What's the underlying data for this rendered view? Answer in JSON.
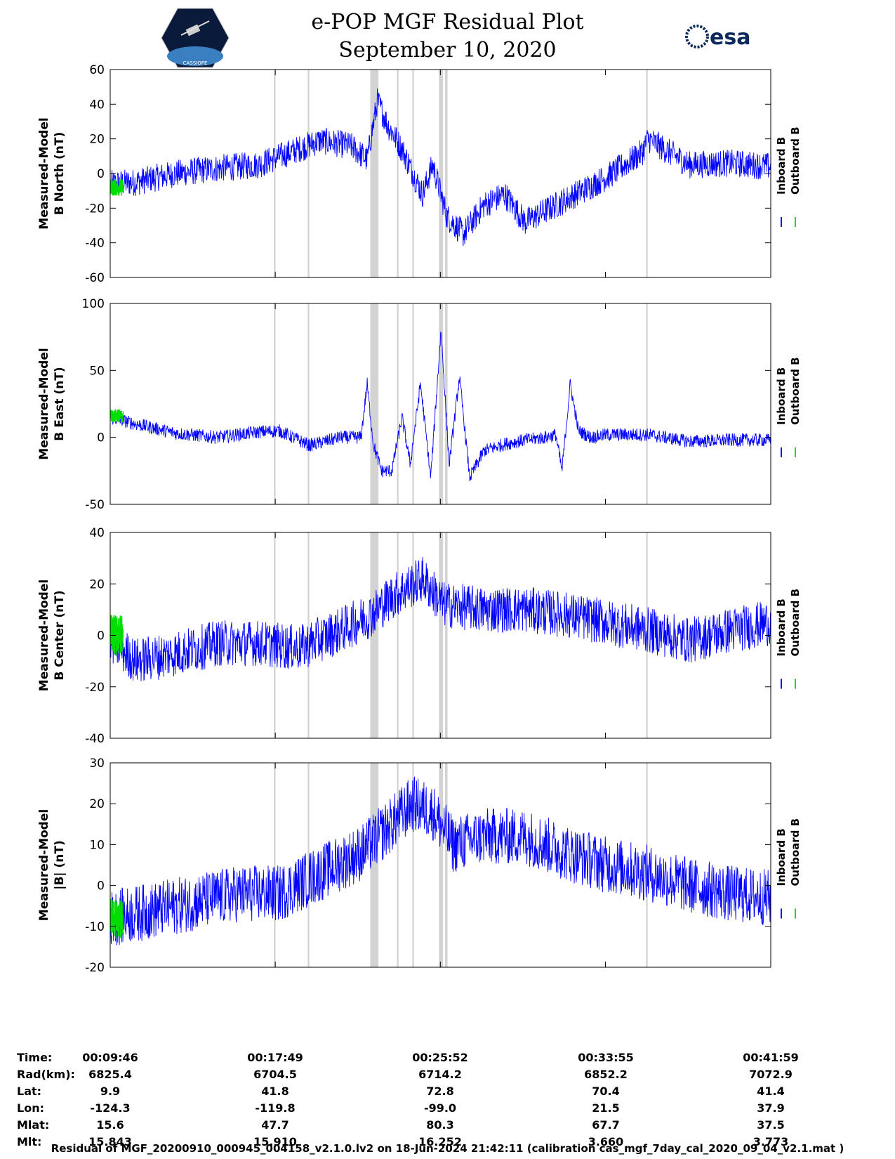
{
  "header": {
    "title_line1": "e-POP MGF Residual Plot",
    "title_line2": "September 10, 2020",
    "left_logo_text": "CASSIOPE",
    "right_logo_text": "esa"
  },
  "colors": {
    "inboard": "#0000ff",
    "outboard": "#00dd00",
    "gap": "#d3d3d3"
  },
  "chart_data": [
    {
      "type": "line",
      "ylabel": [
        "Measured-Model",
        "B North (nT)"
      ],
      "ylim": [
        -60,
        60
      ],
      "yticks": [
        -60,
        -40,
        -20,
        0,
        20,
        40,
        60
      ],
      "legend": [
        "Inboard B",
        "Outboard B"
      ],
      "x_range_minutes": [
        9.77,
        41.98
      ],
      "series": [
        {
          "name": "Inboard B",
          "x": [
            9.8,
            11,
            13,
            15,
            17,
            18.5,
            20,
            21.5,
            22.3,
            22.8,
            23.3,
            24,
            25,
            25.5,
            26.2,
            27,
            28,
            29,
            30,
            32,
            34,
            35.7,
            36,
            38,
            40,
            42
          ],
          "y": [
            -6,
            -5,
            0,
            3,
            5,
            12,
            19,
            16,
            8,
            42,
            28,
            14,
            -12,
            5,
            -25,
            -35,
            -18,
            -12,
            -28,
            -15,
            -2,
            12,
            20,
            5,
            6,
            4
          ],
          "noise": 8
        },
        {
          "name": "Outboard B",
          "x": [
            9.8,
            10.4
          ],
          "y": [
            -8,
            -8
          ],
          "noise": 5
        }
      ]
    },
    {
      "type": "line",
      "ylabel": [
        "Measured-Model",
        "B East (nT)"
      ],
      "ylim": [
        -50,
        100
      ],
      "yticks": [
        -50,
        0,
        50,
        100
      ],
      "legend": [
        "Inboard B",
        "Outboard B"
      ],
      "x_range_minutes": [
        9.77,
        41.98
      ],
      "series": [
        {
          "name": "Inboard B",
          "x": [
            9.8,
            11,
            13,
            15,
            17,
            18,
            19.5,
            21,
            22,
            22.3,
            22.6,
            23,
            23.5,
            24,
            24.4,
            24.9,
            25.4,
            25.9,
            26.3,
            26.8,
            27.3,
            28,
            29,
            30,
            31,
            31.5,
            31.8,
            32.2,
            32.6,
            33.2,
            34,
            36,
            38,
            40,
            42
          ],
          "y": [
            15,
            10,
            3,
            0,
            4,
            5,
            -6,
            0,
            0,
            40,
            -5,
            -25,
            -25,
            15,
            -20,
            40,
            -30,
            80,
            -20,
            45,
            -30,
            -10,
            -5,
            -2,
            0,
            2,
            -25,
            40,
            5,
            0,
            2,
            2,
            -3,
            -2,
            -2
          ],
          "noise": 5
        },
        {
          "name": "Outboard B",
          "x": [
            9.8,
            10.4
          ],
          "y": [
            16,
            16
          ],
          "noise": 5
        }
      ]
    },
    {
      "type": "line",
      "ylabel": [
        "Measured-Model",
        "B Center (nT)"
      ],
      "ylim": [
        -40,
        40
      ],
      "yticks": [
        -40,
        -20,
        0,
        20,
        40
      ],
      "legend": [
        "Inboard B",
        "Outboard B"
      ],
      "x_range_minutes": [
        9.77,
        41.98
      ],
      "series": [
        {
          "name": "Inboard B",
          "x": [
            9.8,
            11,
            13,
            15,
            17,
            19,
            21,
            22.5,
            23.5,
            25,
            26,
            28,
            30,
            32,
            34,
            36,
            38,
            40,
            42
          ],
          "y": [
            -2,
            -10,
            -7,
            -3,
            -3,
            -5,
            2,
            8,
            15,
            22,
            12,
            10,
            10,
            8,
            5,
            2,
            -2,
            2,
            5
          ],
          "noise": 9
        },
        {
          "name": "Outboard B",
          "x": [
            9.8,
            10.4
          ],
          "y": [
            0,
            0
          ],
          "noise": 8
        }
      ]
    },
    {
      "type": "line",
      "ylabel": [
        "Measured-Model",
        "|B| (nT)"
      ],
      "ylim": [
        -20,
        30
      ],
      "yticks": [
        -20,
        -10,
        0,
        10,
        20,
        30
      ],
      "legend": [
        "Inboard B",
        "Outboard B"
      ],
      "x_range_minutes": [
        9.77,
        41.98
      ],
      "series": [
        {
          "name": "Inboard B",
          "x": [
            9.8,
            12,
            14,
            16,
            18,
            20,
            22,
            23.5,
            24.5,
            25.5,
            26.5,
            28,
            30,
            31,
            32,
            34,
            36,
            38,
            40,
            42
          ],
          "y": [
            -8,
            -6,
            -4,
            -2,
            -2,
            3,
            8,
            15,
            20,
            18,
            10,
            12,
            12,
            10,
            8,
            5,
            3,
            0,
            -2,
            -3
          ],
          "noise": 7
        },
        {
          "name": "Outboard B",
          "x": [
            9.8,
            10.4
          ],
          "y": [
            -8,
            -8
          ],
          "noise": 5
        }
      ]
    }
  ],
  "gaps_minutes": [
    [
      17.75,
      17.83
    ],
    [
      19.4,
      19.48
    ],
    [
      22.45,
      22.85
    ],
    [
      23.75,
      23.83
    ],
    [
      24.5,
      24.58
    ],
    [
      25.8,
      26.0
    ],
    [
      26.1,
      26.22
    ],
    [
      35.9,
      35.98
    ]
  ],
  "ephemeris": {
    "row_labels": [
      "Time:",
      "Rad(km):",
      "Lat:",
      "Lon:",
      "Mlat:",
      "Mlt:"
    ],
    "columns": [
      [
        "00:09:46",
        "6825.4",
        "9.9",
        "-124.3",
        "15.6",
        "15.843"
      ],
      [
        "00:17:49",
        "6704.5",
        "41.8",
        "-119.8",
        "47.7",
        "15.910"
      ],
      [
        "00:25:52",
        "6714.2",
        "72.8",
        "-99.0",
        "80.3",
        "16.252"
      ],
      [
        "00:33:55",
        "6852.2",
        "70.4",
        "21.5",
        "67.7",
        "3.660"
      ],
      [
        "00:41:59",
        "7072.9",
        "41.4",
        "37.9",
        "37.5",
        "3.773"
      ]
    ]
  },
  "footnote": "Residual of MGF_20200910_000945_004158_v2.1.0.lv2 on 18-Jun-2024 21:42:11 (calibration cas_mgf_7day_cal_2020_09_04_v2.1.mat )"
}
